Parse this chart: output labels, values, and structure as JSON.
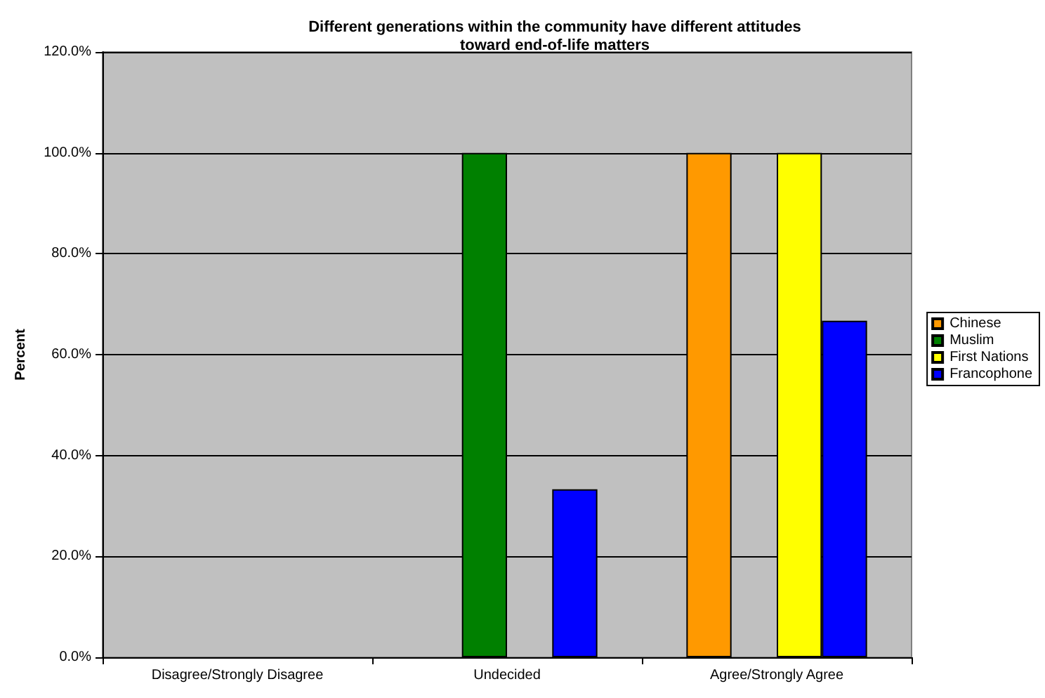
{
  "chart_data": {
    "type": "bar",
    "title": "Different generations within the community have different attitudes\ntoward end-of-life matters",
    "ylabel": "Percent",
    "categories": [
      "Disagree/Strongly Disagree",
      "Undecided",
      "Agree/Strongly Agree"
    ],
    "series": [
      {
        "name": "Chinese",
        "color": "#ff9900",
        "values": [
          0,
          0,
          100
        ]
      },
      {
        "name": "Muslim",
        "color": "#008000",
        "values": [
          0,
          100,
          0
        ]
      },
      {
        "name": "First Nations",
        "color": "#ffff00",
        "values": [
          0,
          0,
          100
        ]
      },
      {
        "name": "Francophone",
        "color": "#0000ff",
        "values": [
          0,
          33.3,
          66.7
        ]
      }
    ],
    "ylim": [
      0,
      120
    ],
    "yticks": [
      {
        "value": 0,
        "label": "0.0%"
      },
      {
        "value": 20,
        "label": "20.0%"
      },
      {
        "value": 40,
        "label": "40.0%"
      },
      {
        "value": 60,
        "label": "60.0%"
      },
      {
        "value": 80,
        "label": "80.0%"
      },
      {
        "value": 100,
        "label": "100.0%"
      },
      {
        "value": 120,
        "label": "120.0%"
      }
    ],
    "grid": "y",
    "legend": "right"
  }
}
